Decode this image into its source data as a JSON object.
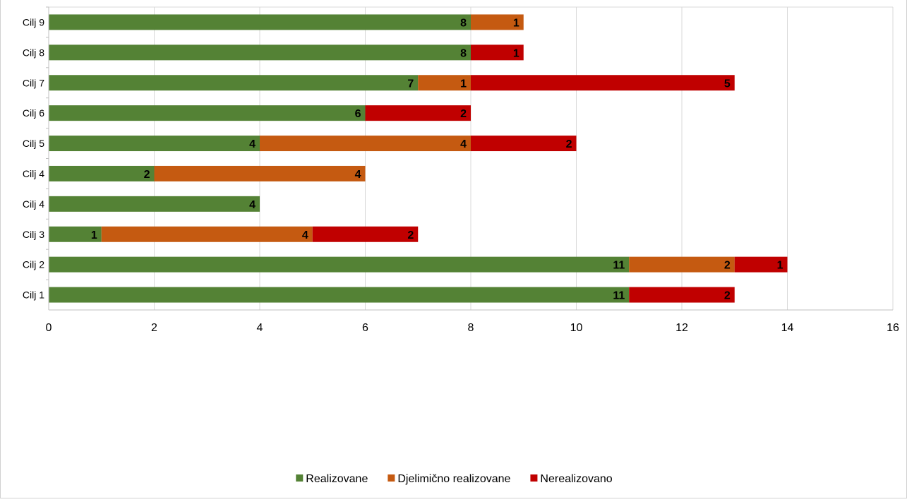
{
  "chart_data": {
    "type": "bar",
    "orientation": "horizontal",
    "stacked": true,
    "categories": [
      "Cilj 1",
      "Cilj 2",
      "Cilj 3",
      "Cilj 4",
      "Cilj 4",
      "Cilj 5",
      "Cilj 6",
      "Cilj 7",
      "Cilj 8",
      "Cilj 9"
    ],
    "series": [
      {
        "name": "Realizovane",
        "color": "#548235",
        "values": [
          11,
          11,
          1,
          4,
          2,
          4,
          6,
          7,
          8,
          8
        ]
      },
      {
        "name": "Djelimično realizovane",
        "color": "#C55A11",
        "values": [
          0,
          2,
          4,
          0,
          4,
          4,
          0,
          1,
          0,
          1
        ]
      },
      {
        "name": "Nerealizovano",
        "color": "#C00000",
        "values": [
          2,
          1,
          2,
          0,
          0,
          2,
          2,
          5,
          1,
          0
        ]
      }
    ],
    "xlim": [
      0,
      16
    ],
    "xticks": [
      0,
      2,
      4,
      6,
      8,
      10,
      12,
      14,
      16
    ],
    "grid": true,
    "legend_position": "bottom",
    "title": "",
    "xlabel": "",
    "ylabel": ""
  }
}
